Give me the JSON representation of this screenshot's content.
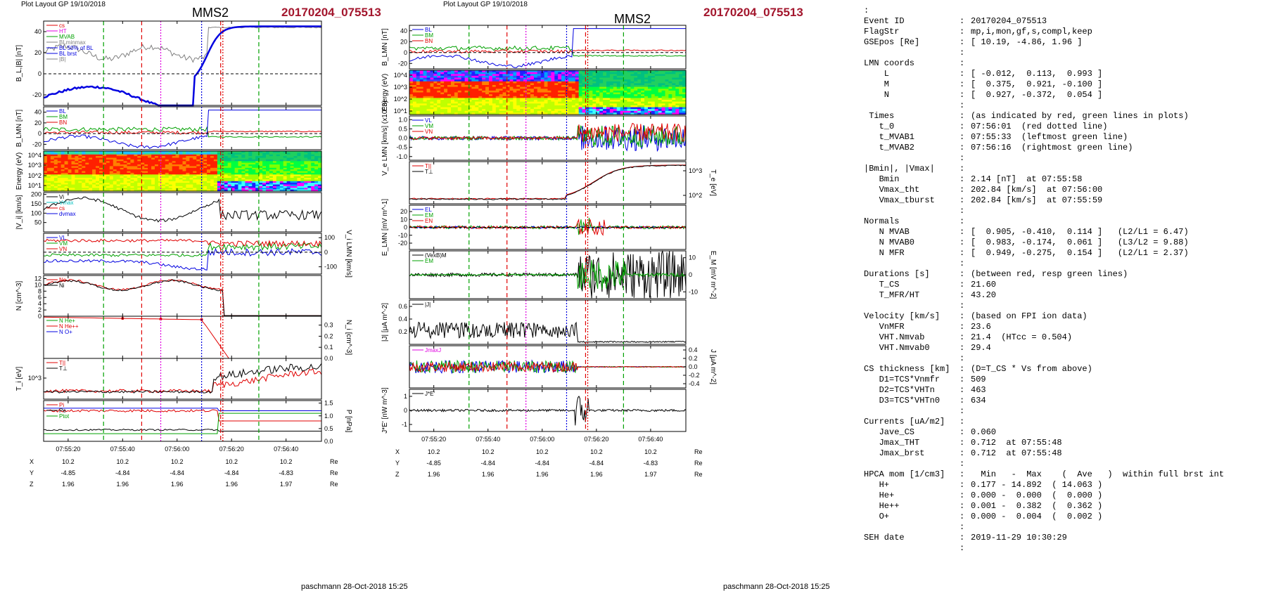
{
  "left_figure": {
    "header": "Plot Layout GP 19/10/2018",
    "spacecraft": "MMS2",
    "event": "20170204_075513",
    "footer": "paschmann 28-Oct-2018 15:25"
  },
  "right_figure": {
    "header": "Plot Layout GP 19/10/2018",
    "spacecraft": "MMS2",
    "event": "20170204_075513",
    "footer": "paschmann 28-Oct-2018 15:25"
  },
  "colors": {
    "event": "#a3162d",
    "red_line": "#e00000",
    "green_line": "#00a000",
    "magenta_line": "#e000e0",
    "blue_line": "#0000e0"
  },
  "chart_data": [
    {
      "type": "line",
      "id": "left-stack",
      "x_ticks": [
        "07:55:20",
        "07:55:40",
        "07:56:00",
        "07:56:20",
        "07:56:40"
      ],
      "coords": {
        "X": [
          "10.2",
          "10.2",
          "10.2",
          "10.2",
          "10.2"
        ],
        "Y": [
          "-4.85",
          "-4.84",
          "-4.84",
          "-4.84",
          "-4.83"
        ],
        "Z": [
          "1.96",
          "1.96",
          "1.96",
          "1.96",
          "1.97"
        ],
        "unit": "Re"
      },
      "panels": [
        {
          "ylabel": "B_L,|B| [nT]",
          "yticks": [
            "40",
            "20",
            "0",
            "-20"
          ],
          "legend": [
            "cs",
            "HT",
            "MVAB",
            "BLminmax",
            "BL 50% of BL",
            "BL brst",
            "|B|"
          ]
        },
        {
          "ylabel": "B_LMN [nT]",
          "yticks": [
            "40",
            "20",
            "0",
            "-20"
          ],
          "legend": [
            "BL",
            "BM",
            "BN"
          ]
        },
        {
          "ylabel": "Energy (eV)",
          "yticks": [
            "10^4",
            "10^3",
            "10^2",
            "10^1"
          ],
          "type": "heatmap"
        },
        {
          "ylabel": "|V_i| [km/s]",
          "yticks": [
            "200",
            "150",
            "100",
            "50"
          ],
          "legend": [
            "Vi",
            "Vmax",
            "cs",
            "dvmax"
          ]
        },
        {
          "ylabel": "V_i LMN [km/s]",
          "yticks": [
            "100",
            "0",
            "-100"
          ],
          "legend": [
            "VL",
            "VM",
            "VN"
          ]
        },
        {
          "ylabel": "N [cm^-3]",
          "yticks": [
            "12",
            "10",
            "8",
            "6",
            "4",
            "2",
            "0"
          ],
          "legend": [
            "Ne",
            "Ni"
          ]
        },
        {
          "ylabel": "N_i [cm^-3]",
          "yticks": [
            "0.3",
            "0.2",
            "0.1",
            "0.0"
          ],
          "legend": [
            "N He+",
            "N He++",
            "N O+"
          ]
        },
        {
          "ylabel": "T_i [eV]",
          "yticks": [
            "10^3"
          ],
          "legend": [
            "T||",
            "T⊥"
          ]
        },
        {
          "ylabel": "P [nPa]",
          "yticks": [
            "1.5",
            "1.0",
            "0.5",
            "0.0"
          ],
          "legend": [
            "Pi",
            "Pe",
            "Ptot"
          ]
        }
      ]
    },
    {
      "type": "line",
      "id": "right-stack",
      "x_ticks": [
        "07:55:20",
        "07:55:40",
        "07:56:00",
        "07:56:20",
        "07:56:40"
      ],
      "coords": {
        "X": [
          "10.2",
          "10.2",
          "10.2",
          "10.2",
          "10.2"
        ],
        "Y": [
          "-4.85",
          "-4.84",
          "-4.84",
          "-4.84",
          "-4.83"
        ],
        "Z": [
          "1.96",
          "1.96",
          "1.96",
          "1.96",
          "1.97"
        ],
        "unit": "Re"
      },
      "panels": [
        {
          "ylabel": "B_LMN [nT]",
          "yticks": [
            "40",
            "20",
            "0",
            "-20"
          ],
          "legend": [
            "BL",
            "BM",
            "BN"
          ]
        },
        {
          "ylabel": "Energy (eV)",
          "yticks": [
            "10^4",
            "10^3",
            "10^2",
            "10^1"
          ],
          "type": "heatmap"
        },
        {
          "ylabel": "V_e LMN [km/s] (x10^3)",
          "yticks": [
            "1.0",
            "0.5",
            "0.0",
            "-0.5",
            "-1.0"
          ],
          "legend": [
            "VL",
            "VM",
            "VN"
          ]
        },
        {
          "ylabel": "T_e [eV]",
          "yticks": [
            "10^3",
            "10^2"
          ],
          "legend": [
            "T||",
            "T⊥"
          ]
        },
        {
          "ylabel": "E_LMN [mV m^-1]",
          "yticks": [
            "20",
            "10",
            "0",
            "-10",
            "-20"
          ],
          "legend": [
            "EL",
            "EM",
            "EN"
          ]
        },
        {
          "ylabel": "E_M [mV m^-2]",
          "yticks": [
            "10",
            "0",
            "-10"
          ],
          "legend": [
            "(VexB)M",
            "EM"
          ]
        },
        {
          "ylabel": "|J| [μA m^-2]",
          "yticks": [
            "0.6",
            "0.4",
            "0.2"
          ],
          "legend": [
            "|J|"
          ]
        },
        {
          "ylabel": "J [μA m^-2]",
          "yticks": [
            "0.4",
            "0.2",
            "0.0",
            "-0.2",
            "-0.4"
          ],
          "legend": [
            "JmaxJ"
          ]
        },
        {
          "ylabel": "J*E' [nW m^-3]",
          "yticks": [
            "1",
            "0",
            "-1"
          ],
          "legend": [
            "J*E'"
          ]
        }
      ]
    }
  ],
  "summary": [
    {
      "k": "Event ID",
      "v": "20170204_075513"
    },
    {
      "k": "FlagStr",
      "v": "mp,i,mon,gf,s,compl,keep"
    },
    {
      "k": "GSEpos [Re]",
      "v": "[ 10.19, -4.86, 1.96 ]"
    },
    {
      "k": "",
      "v": ""
    },
    {
      "k": "LMN coords",
      "v": ""
    },
    {
      "k": "    L",
      "v": "[ -0.012,  0.113,  0.993 ]"
    },
    {
      "k": "    M",
      "v": "[  0.375,  0.921, -0.100 ]"
    },
    {
      "k": "    N",
      "v": "[  0.927, -0.372,  0.054 ]"
    },
    {
      "k": "",
      "v": ""
    },
    {
      "k": " Times",
      "v": "(as indicated by red, green lines in plots)"
    },
    {
      "k": "   t_0",
      "v": "07:56:01  (red dotted line)"
    },
    {
      "k": "   t_MVAB1",
      "v": "07:55:33  (leftmost green line)"
    },
    {
      "k": "   t_MVAB2",
      "v": "07:56:16  (rightmost green line)"
    },
    {
      "k": "",
      "v": ""
    },
    {
      "k": "|Bmin|, |Vmax|",
      "v": ""
    },
    {
      "k": "   Bmin",
      "v": "2.14 [nT]  at 07:55:58"
    },
    {
      "k": "   Vmax_tht",
      "v": "202.84 [km/s]  at 07:56:00"
    },
    {
      "k": "   Vmax_tburst",
      "v": "202.84 [km/s]  at 07:55:59"
    },
    {
      "k": "",
      "v": ""
    },
    {
      "k": "Normals",
      "v": ""
    },
    {
      "k": "   N MVAB",
      "v": "[  0.905, -0.410,  0.114 ]   (L2/L1 = 6.47)"
    },
    {
      "k": "   N MVAB0",
      "v": "[  0.983, -0.174,  0.061 ]   (L3/L2 = 9.88)"
    },
    {
      "k": "   N MFR",
      "v": "[  0.949, -0.275,  0.154 ]   (L2/L1 = 2.37)"
    },
    {
      "k": "",
      "v": ""
    },
    {
      "k": "Durations [s]",
      "v": "(between red, resp green lines)"
    },
    {
      "k": "   T_CS",
      "v": "21.60"
    },
    {
      "k": "   T_MFR/HT",
      "v": "43.20"
    },
    {
      "k": "",
      "v": ""
    },
    {
      "k": "Velocity [km/s]",
      "v": "(based on FPI ion data)"
    },
    {
      "k": "   VnMFR",
      "v": "23.6"
    },
    {
      "k": "   VHT.Nmvab",
      "v": "21.4  (HTcc = 0.504)"
    },
    {
      "k": "   VHT.Nmvab0",
      "v": "29.4"
    },
    {
      "k": "",
      "v": ""
    },
    {
      "k": "CS thickness [km]",
      "v": "(D=T_CS * Vs from above)"
    },
    {
      "k": "   D1=TCS*Vnmfr",
      "v": "509"
    },
    {
      "k": "   D2=TCS*VHTn",
      "v": "463"
    },
    {
      "k": "   D3=TCS*VHTn0",
      "v": "634"
    },
    {
      "k": "",
      "v": ""
    },
    {
      "k": "Currents [uA/m2]",
      "v": ""
    },
    {
      "k": "   Jave_CS",
      "v": "0.060"
    },
    {
      "k": "   Jmax_THT",
      "v": "0.712  at 07:55:48"
    },
    {
      "k": "   Jmax_brst",
      "v": "0.712  at 07:55:48"
    },
    {
      "k": "",
      "v": ""
    },
    {
      "k": "HPCA mom [1/cm3]",
      "v": "  Min   -  Max    (  Ave   )  within full brst int"
    },
    {
      "k": "   H+",
      "v": "0.177 - 14.892  ( 14.063 )"
    },
    {
      "k": "   He+",
      "v": "0.000 -  0.000  (  0.000 )"
    },
    {
      "k": "   He++",
      "v": "0.001 -  0.382  (  0.362 )"
    },
    {
      "k": "   O+",
      "v": "0.000 -  0.004  (  0.002 )"
    },
    {
      "k": "",
      "v": ""
    },
    {
      "k": "SEH date",
      "v": "2019-11-29 10:30:29"
    },
    {
      "k": "",
      "v": ""
    }
  ]
}
